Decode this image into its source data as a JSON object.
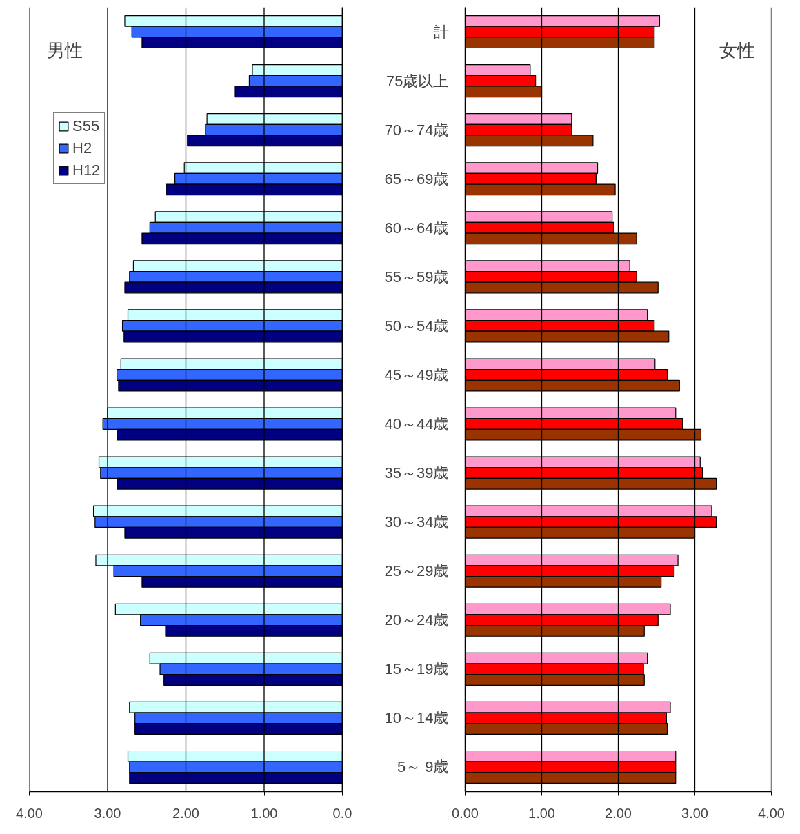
{
  "chart_data": [
    {
      "type": "bar",
      "orientation": "horizontal",
      "categories": [
        null,
        null,
        null,
        null,
        null,
        null,
        null,
        null,
        null,
        null,
        null,
        null,
        null,
        null,
        null,
        null
      ],
      "series": [
        {
          "name": "S55",
          "color": "#ccffff",
          "values": [
            2.78,
            1.15,
            1.73,
            2.02,
            2.39,
            2.67,
            2.74,
            2.83,
            3.0,
            3.11,
            3.18,
            3.15,
            2.9,
            2.46,
            2.72,
            2.74
          ]
        },
        {
          "name": "H2",
          "color": "#3366ff",
          "values": [
            2.69,
            1.19,
            1.75,
            2.14,
            2.46,
            2.72,
            2.81,
            2.88,
            3.06,
            3.09,
            3.16,
            2.92,
            2.58,
            2.33,
            2.65,
            2.72
          ]
        },
        {
          "name": "H12",
          "color": "#000080",
          "values": [
            2.56,
            1.37,
            1.98,
            2.25,
            2.56,
            2.78,
            2.79,
            2.86,
            2.88,
            2.88,
            2.78,
            2.56,
            2.26,
            2.28,
            2.65,
            2.72
          ]
        }
      ],
      "xlim": [
        4,
        0
      ],
      "xticks": [
        {
          "value": 4,
          "label": "4.00"
        },
        {
          "value": 3,
          "label": "3.00"
        },
        {
          "value": 2,
          "label": "2.00"
        },
        {
          "value": 1,
          "label": "1.00"
        },
        {
          "value": 0,
          "label": "0.0"
        }
      ],
      "grid": "x",
      "legend": "top left",
      "annotations": [
        "男性"
      ]
    },
    {
      "type": "bar",
      "orientation": "horizontal",
      "categories": [
        "計",
        "75歳以上",
        "70～74歳",
        "65～69歳",
        "60～64歳",
        "55～59歳",
        "50～54歳",
        "45～49歳",
        "40～44歳",
        "35～39歳",
        "30～34歳",
        "25～29歳",
        "20～24歳",
        "15～19歳",
        "10～14歳",
        "5～ 9歳"
      ],
      "series": [
        {
          "color": "#ff99cc",
          "values": [
            2.54,
            0.85,
            1.39,
            1.73,
            1.92,
            2.15,
            2.38,
            2.48,
            2.75,
            3.07,
            3.22,
            2.78,
            2.68,
            2.38,
            2.68,
            2.75
          ]
        },
        {
          "color": "#ff0000",
          "values": [
            2.47,
            0.92,
            1.39,
            1.71,
            1.94,
            2.24,
            2.47,
            2.64,
            2.84,
            3.1,
            3.28,
            2.73,
            2.52,
            2.33,
            2.63,
            2.75
          ]
        },
        {
          "color": "#993300",
          "values": [
            2.47,
            1.0,
            1.67,
            1.96,
            2.24,
            2.52,
            2.66,
            2.8,
            3.08,
            3.28,
            3.0,
            2.56,
            2.34,
            2.34,
            2.64,
            2.75
          ]
        }
      ],
      "xlim": [
        0,
        4
      ],
      "xticks": [
        {
          "value": 0,
          "label": "0.00"
        },
        {
          "value": 1,
          "label": "1.00"
        },
        {
          "value": 2,
          "label": "2.00"
        },
        {
          "value": 3,
          "label": "3.00"
        },
        {
          "value": 4,
          "label": "4.00"
        }
      ],
      "grid": "x",
      "annotations": [
        "女性"
      ]
    }
  ]
}
